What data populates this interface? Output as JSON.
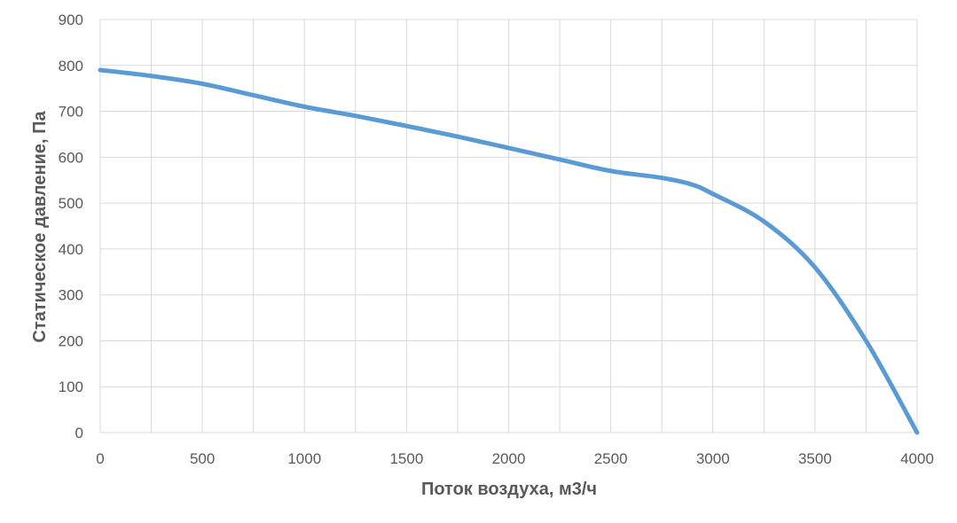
{
  "chart_data": {
    "type": "line",
    "title": "",
    "xlabel": "Поток воздуха, м3/ч",
    "ylabel": "Статическое давление, Па",
    "xlim": [
      0,
      4000
    ],
    "ylim": [
      0,
      900
    ],
    "x_ticks": [
      0,
      500,
      1000,
      1500,
      2000,
      2500,
      3000,
      3500,
      4000
    ],
    "y_ticks": [
      0,
      100,
      200,
      300,
      400,
      500,
      600,
      700,
      800,
      900
    ],
    "x_tick_labels": [
      "0",
      "500",
      "1000",
      "1500",
      "2000",
      "2500",
      "3000",
      "3500",
      "4000"
    ],
    "y_tick_labels": [
      "0",
      "100",
      "200",
      "300",
      "400",
      "500",
      "600",
      "700",
      "800",
      "900"
    ],
    "grid": true,
    "minor_x_grid_step": 250,
    "legend": "none",
    "series": [
      {
        "color": "#5b9bd5",
        "x": [
          0,
          250,
          500,
          750,
          1000,
          1250,
          1500,
          1750,
          2000,
          2250,
          2500,
          2750,
          2900,
          3000,
          3250,
          3500,
          3750,
          4000
        ],
        "y": [
          790,
          777,
          760,
          735,
          710,
          690,
          668,
          645,
          620,
          595,
          570,
          555,
          540,
          520,
          460,
          360,
          200,
          0
        ]
      }
    ]
  },
  "colors": {
    "grid": "#d9d9d9",
    "text": "#595959",
    "background": "#ffffff"
  }
}
